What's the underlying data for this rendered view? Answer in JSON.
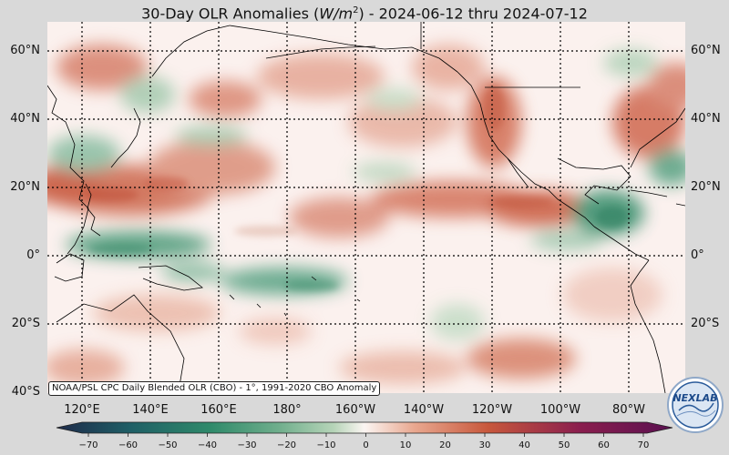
{
  "title": {
    "prefix": "30-Day OLR Anomalies (",
    "unit_base": "W/m",
    "unit_exp": "2",
    "suffix": ") - 2024-06-12 thru 2024-07-12"
  },
  "map": {
    "projection": "equirectangular",
    "lon_range": [
      "100°E",
      "70°W"
    ],
    "lat_range": [
      "40°S",
      "68°N"
    ],
    "lat_labels": [
      "60°N",
      "40°N",
      "20°N",
      "0°",
      "20°S",
      "40°S"
    ],
    "lon_labels": [
      "120°E",
      "140°E",
      "160°E",
      "180°",
      "160°W",
      "140°W",
      "120°W",
      "100°W",
      "80°W"
    ],
    "gridlines": "dotted",
    "colors": {
      "positive": "#c8583c",
      "negative": "#2f8a6a",
      "near_zero": "#fbf1ee",
      "coastline": "#000000"
    }
  },
  "credit": "NOAA/PSL CPC Daily Blended OLR (CBO) - 1°, 1991-2020 CBO Anomaly",
  "colorbar": {
    "ticks": [
      "−70",
      "−60",
      "−50",
      "−40",
      "−30",
      "−20",
      "−10",
      "0",
      "10",
      "20",
      "30",
      "40",
      "50",
      "60",
      "70"
    ],
    "colors": [
      "#1e2a4a",
      "#1f5f66",
      "#2f8a6a",
      "#6fae8c",
      "#b6d4b8",
      "#fbf5f2",
      "#e9a890",
      "#c8583c",
      "#8a1e4e",
      "#5a1050"
    ]
  },
  "logo": {
    "text": "NEXLAB"
  }
}
